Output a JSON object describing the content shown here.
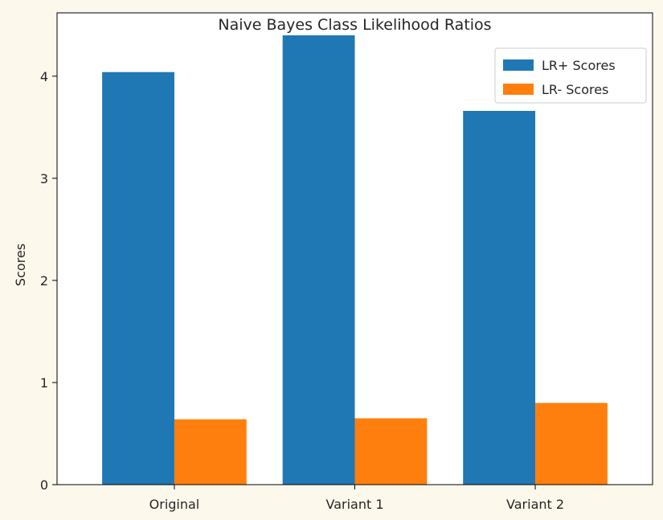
{
  "chart_data": {
    "type": "bar",
    "title": "Naive Bayes Class Likelihood Ratios",
    "xlabel": "",
    "ylabel": "Scores",
    "categories": [
      "Original",
      "Variant 1",
      "Variant 2"
    ],
    "series": [
      {
        "name": "LR+ Scores",
        "color": "#1f77b4",
        "values": [
          4.04,
          4.4,
          3.66
        ]
      },
      {
        "name": "LR- Scores",
        "color": "#ff7f0e",
        "values": [
          0.64,
          0.65,
          0.8
        ]
      }
    ],
    "ylim": [
      0,
      4.62
    ],
    "yticks": [
      0,
      1,
      2,
      3,
      4
    ],
    "grid": false,
    "legend": "top-right"
  },
  "colors": {
    "page_background": "#fdf8ec",
    "plot_background": "#ffffff",
    "axis": "#000000"
  }
}
